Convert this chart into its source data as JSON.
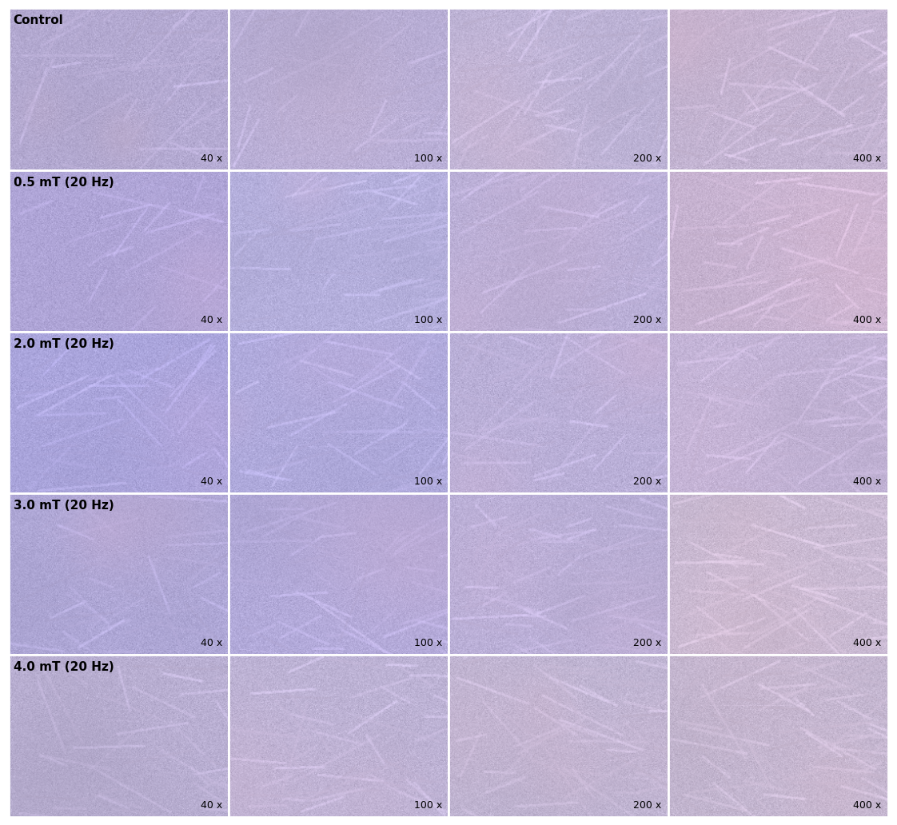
{
  "rows": 5,
  "cols": 4,
  "row_labels": [
    "Control",
    "0.5 mT (20 Hz)",
    "2.0 mT (20 Hz)",
    "3.0 mT (20 Hz)",
    "4.0 mT (20 Hz)"
  ],
  "col_labels": [
    "40 x",
    "100 x",
    "200 x",
    "400 x"
  ],
  "label_color": "#000000",
  "label_fontsize": 11,
  "mag_fontsize": 9,
  "bg_color": "#ffffff",
  "border_color": "#ffffff",
  "border_width": 2,
  "figsize": [
    11.22,
    10.32
  ],
  "dpi": 100,
  "cell_colors": [
    [
      {
        "base": [
          180,
          170,
          210
        ],
        "accent": [
          210,
          180,
          200
        ],
        "hue_shift": 0
      },
      {
        "base": [
          185,
          175,
          215
        ],
        "accent": [
          215,
          185,
          205
        ],
        "hue_shift": 0
      },
      {
        "base": [
          190,
          180,
          215
        ],
        "accent": [
          220,
          185,
          205
        ],
        "hue_shift": 5
      },
      {
        "base": [
          195,
          180,
          210
        ],
        "accent": [
          225,
          185,
          205
        ],
        "hue_shift": 5
      }
    ],
    [
      {
        "base": [
          175,
          165,
          215
        ],
        "accent": [
          205,
          175,
          215
        ],
        "hue_shift": 10
      },
      {
        "base": [
          180,
          175,
          220
        ],
        "accent": [
          210,
          180,
          215
        ],
        "hue_shift": 8
      },
      {
        "base": [
          185,
          175,
          215
        ],
        "accent": [
          215,
          180,
          210
        ],
        "hue_shift": 6
      },
      {
        "base": [
          200,
          180,
          210
        ],
        "accent": [
          225,
          185,
          205
        ],
        "hue_shift": 4
      }
    ],
    [
      {
        "base": [
          170,
          165,
          220
        ],
        "accent": [
          200,
          170,
          215
        ],
        "hue_shift": 15
      },
      {
        "base": [
          175,
          170,
          220
        ],
        "accent": [
          205,
          175,
          215
        ],
        "hue_shift": 12
      },
      {
        "base": [
          185,
          175,
          215
        ],
        "accent": [
          215,
          180,
          210
        ],
        "hue_shift": 8
      },
      {
        "base": [
          195,
          180,
          215
        ],
        "accent": [
          220,
          185,
          210
        ],
        "hue_shift": 5
      }
    ],
    [
      {
        "base": [
          175,
          168,
          215
        ],
        "accent": [
          205,
          175,
          210
        ],
        "hue_shift": 12
      },
      {
        "base": [
          178,
          170,
          218
        ],
        "accent": [
          208,
          178,
          212
        ],
        "hue_shift": 10
      },
      {
        "base": [
          185,
          175,
          215
        ],
        "accent": [
          215,
          180,
          210
        ],
        "hue_shift": 7
      },
      {
        "base": [
          200,
          185,
          210
        ],
        "accent": [
          225,
          190,
          205
        ],
        "hue_shift": 4
      }
    ],
    [
      {
        "base": [
          185,
          175,
          210
        ],
        "accent": [
          215,
          180,
          205
        ],
        "hue_shift": 5
      },
      {
        "base": [
          188,
          178,
          212
        ],
        "accent": [
          218,
          183,
          207
        ],
        "hue_shift": 4
      },
      {
        "base": [
          190,
          180,
          210
        ],
        "accent": [
          220,
          185,
          205
        ],
        "hue_shift": 3
      },
      {
        "base": [
          195,
          182,
          208
        ],
        "accent": [
          222,
          187,
          203
        ],
        "hue_shift": 2
      }
    ]
  ]
}
